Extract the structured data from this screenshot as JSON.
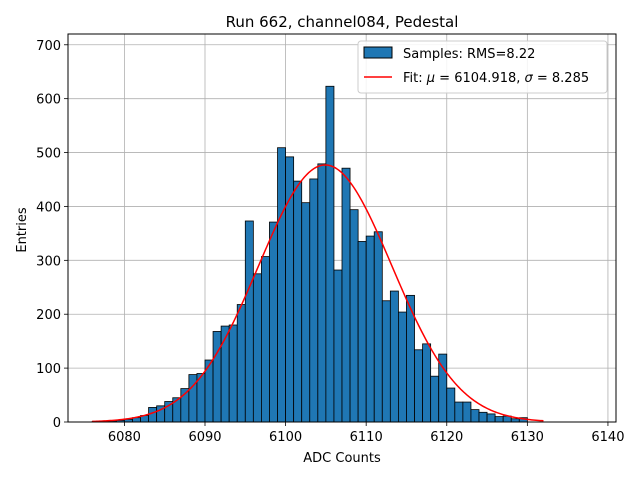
{
  "chart_data": {
    "type": "bar",
    "title": "Run 662, channel084, Pedestal",
    "xlabel": "ADC Counts",
    "ylabel": "Entries",
    "xlim": [
      6073,
      6141
    ],
    "ylim": [
      0,
      720
    ],
    "xticks": [
      6080,
      6090,
      6100,
      6110,
      6120,
      6130,
      6140
    ],
    "yticks": [
      0,
      100,
      200,
      300,
      400,
      500,
      600,
      700
    ],
    "grid": true,
    "legend_position": "top-right",
    "bar_color": "#1f77b4",
    "fit_color": "#ff0000",
    "histogram": {
      "name": "Samples: RMS=8.22",
      "bin_start": 6076,
      "bin_width": 1,
      "counts": [
        1,
        2,
        2,
        3,
        5,
        8,
        12,
        27,
        30,
        38,
        45,
        62,
        88,
        90,
        115,
        168,
        178,
        180,
        218,
        373,
        275,
        307,
        371,
        509,
        492,
        447,
        407,
        451,
        479,
        623,
        282,
        471,
        394,
        335,
        345,
        353,
        225,
        243,
        204,
        235,
        134,
        145,
        85,
        126,
        63,
        37,
        37,
        23,
        18,
        15,
        10,
        11,
        6,
        8
      ]
    },
    "fit": {
      "name": "Fit: μ = 6104.918, σ = 8.285",
      "label_parts": {
        "prefix": "Fit: ",
        "mu_symbol": "μ",
        "mid": " = 6104.918, ",
        "sigma_symbol": "σ",
        "suffix": " = 8.285"
      },
      "mu": 6104.918,
      "sigma": 8.285,
      "amplitude": 477,
      "x_range": [
        6076,
        6132
      ]
    }
  }
}
